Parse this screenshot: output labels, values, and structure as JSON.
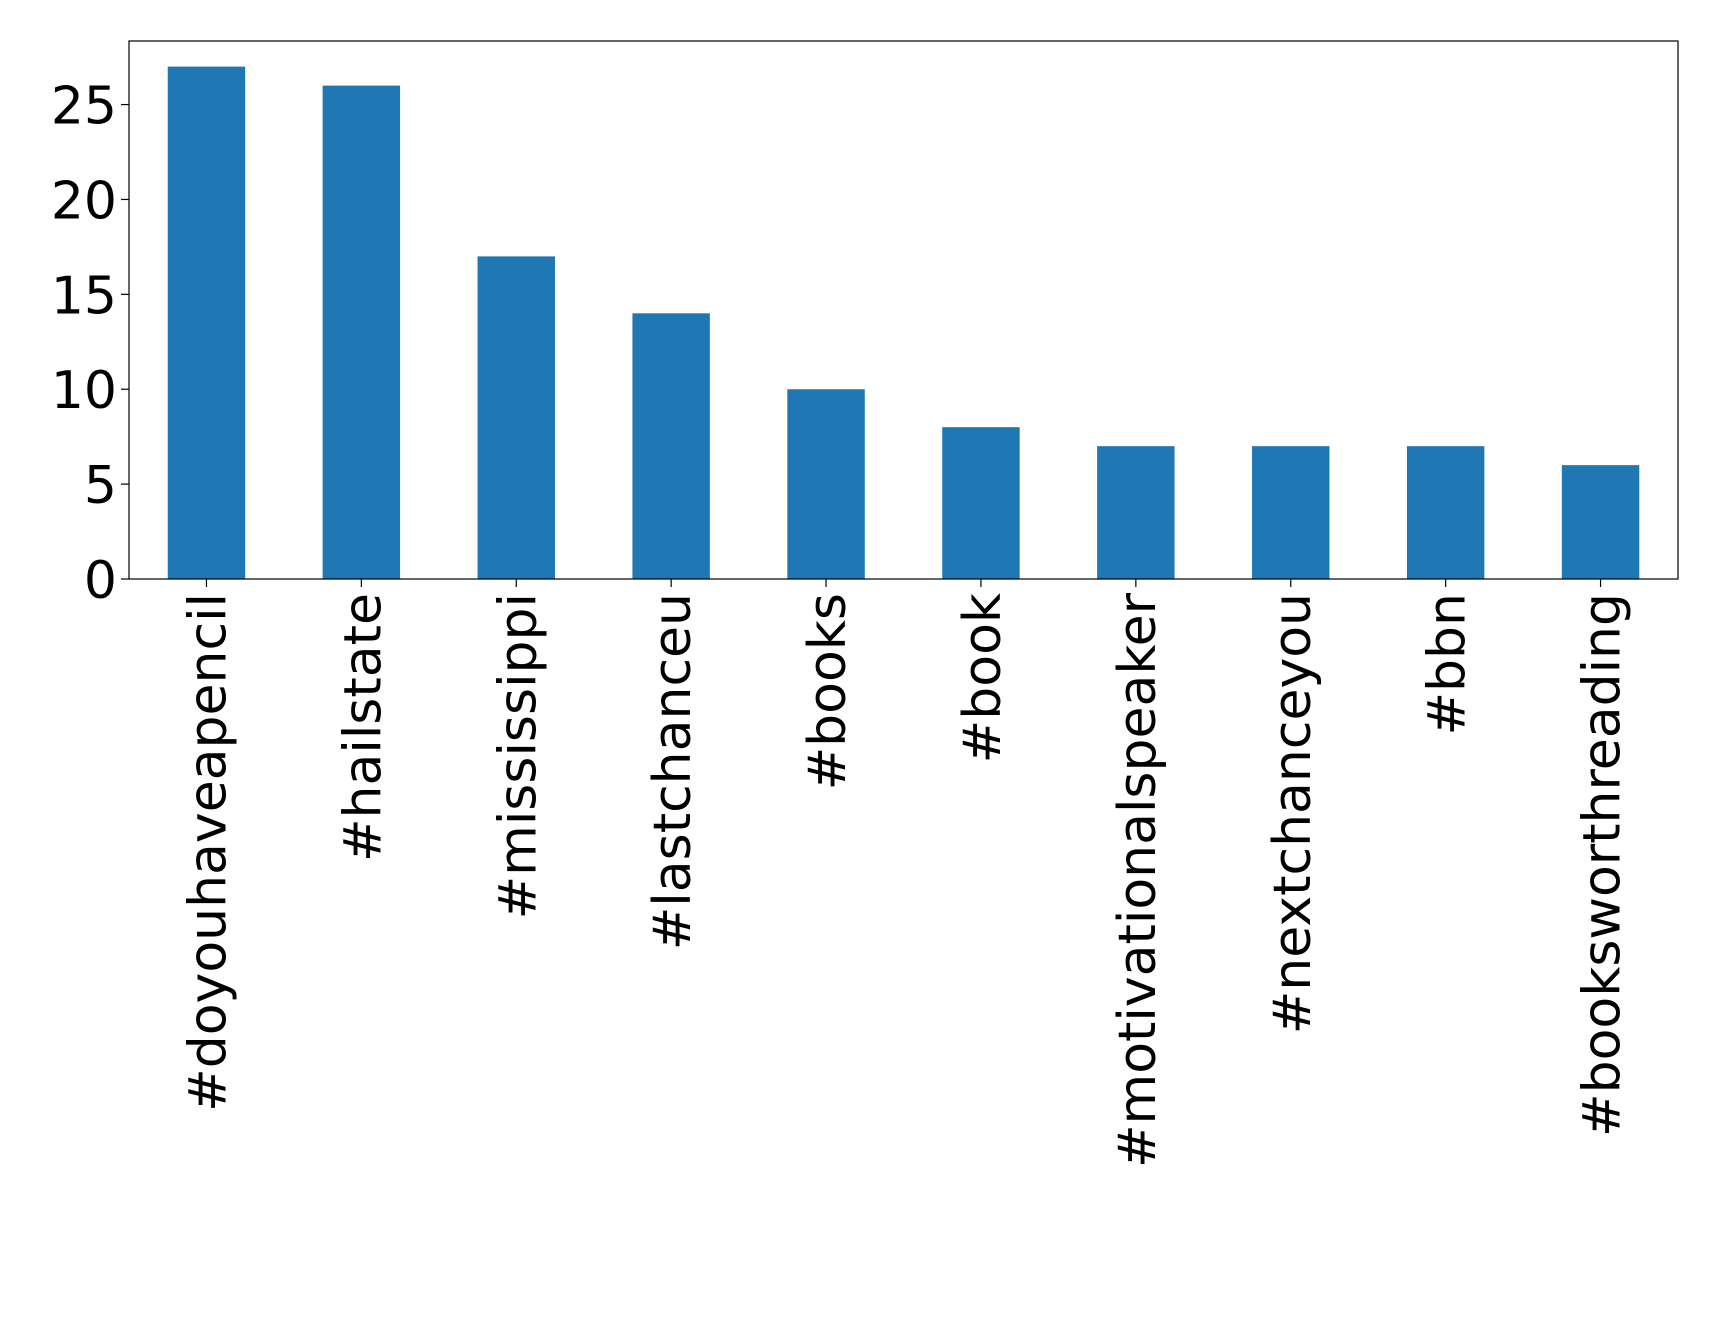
{
  "chart_data": {
    "type": "bar",
    "categories": [
      "#doyouhaveapencil",
      "#hailstate",
      "#mississippi",
      "#lastchanceu",
      "#books",
      "#book",
      "#motivationalspeaker",
      "#nextchanceyou",
      "#bbn",
      "#booksworthreading"
    ],
    "values": [
      27,
      26,
      17,
      14,
      10,
      8,
      7,
      7,
      7,
      6
    ],
    "color": "#1f77b4",
    "ylim": [
      0,
      28.35
    ],
    "yticks": [
      0,
      5,
      10,
      15,
      20,
      25
    ],
    "grid": false
  }
}
